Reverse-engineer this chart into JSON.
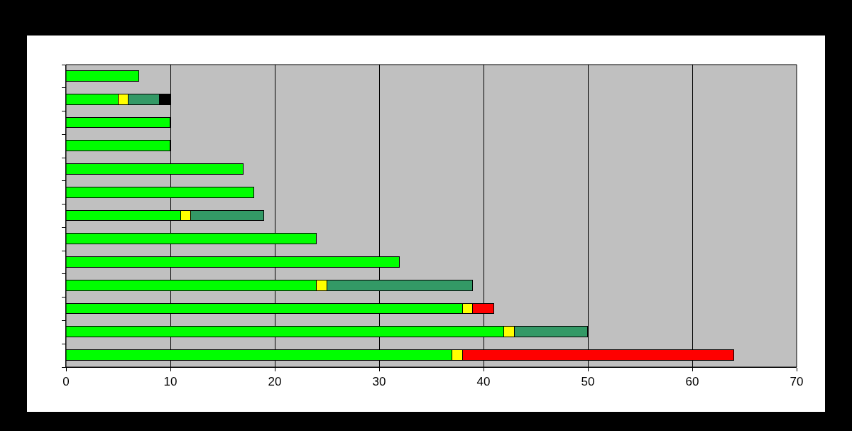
{
  "chart_data": {
    "type": "bar",
    "orientation": "horizontal",
    "stacked": true,
    "categories": [
      null,
      null,
      null,
      null,
      null,
      null,
      null,
      null,
      null,
      null,
      null,
      null,
      null
    ],
    "series": [
      {
        "color": "#00ff00",
        "values": [
          7,
          5,
          10,
          10,
          17,
          18,
          11,
          24,
          32,
          24,
          38,
          42,
          37
        ]
      },
      {
        "color": "#ffff00",
        "values": [
          null,
          1,
          null,
          null,
          null,
          null,
          1,
          null,
          null,
          1,
          1,
          1,
          1
        ]
      },
      {
        "color": "#339966",
        "values": [
          null,
          3,
          null,
          null,
          null,
          null,
          7,
          null,
          null,
          14,
          null,
          7,
          null
        ]
      },
      {
        "color": "#ff0000",
        "values": [
          null,
          null,
          null,
          null,
          null,
          null,
          null,
          null,
          null,
          null,
          2,
          null,
          26
        ]
      },
      {
        "color": "#000000",
        "values": [
          null,
          1,
          null,
          null,
          null,
          null,
          null,
          null,
          null,
          null,
          null,
          null,
          null
        ]
      }
    ],
    "xlim": [
      0,
      70
    ],
    "xticks": [
      0,
      10,
      20,
      30,
      40,
      50,
      60,
      70
    ],
    "grid": "x",
    "tick_labels": "x"
  }
}
